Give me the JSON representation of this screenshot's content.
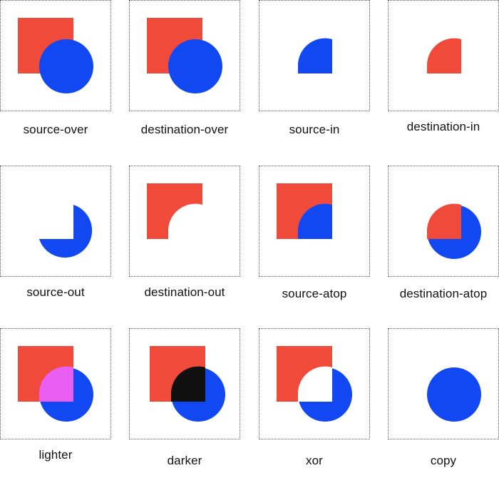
{
  "colors": {
    "square": "#ef4a3a",
    "circle": "#1148f2",
    "lighter_overlap": "#ea5ef2",
    "darker_overlap": "#111111",
    "background": "#ffffff",
    "border": "#5a5a5a"
  },
  "modes": [
    {
      "label": "source-over"
    },
    {
      "label": "destination-over"
    },
    {
      "label": "source-in"
    },
    {
      "label": "destination-in"
    },
    {
      "label": "source-out"
    },
    {
      "label": "destination-out"
    },
    {
      "label": "source-atop"
    },
    {
      "label": "destination-atop"
    },
    {
      "label": "lighter"
    },
    {
      "label": "darker"
    },
    {
      "label": "xor"
    },
    {
      "label": "copy"
    }
  ]
}
